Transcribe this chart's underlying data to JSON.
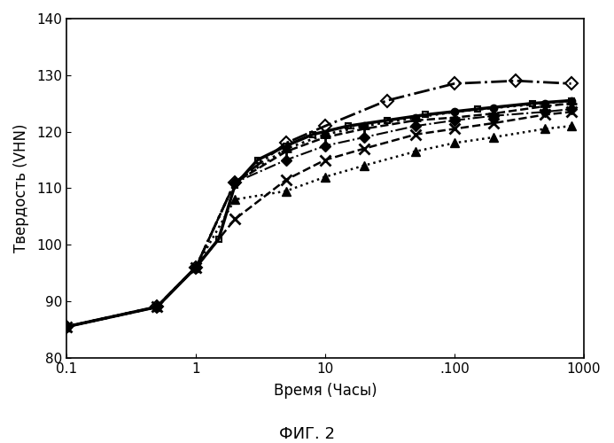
{
  "title": "ФИГ. 2",
  "xlabel": "Время (Часы)",
  "ylabel": "Твердость (VHN)",
  "xlim": [
    0.1,
    1000
  ],
  "ylim": [
    80,
    140
  ],
  "yticks": [
    80,
    90,
    100,
    110,
    120,
    130,
    140
  ],
  "background_color": "#ffffff",
  "series": [
    {
      "name": "solid_main",
      "x": [
        0.1,
        0.5,
        1.0,
        1.5,
        2.0,
        3.0,
        5.0,
        8.0,
        15.0,
        30.0,
        60.0,
        150.0,
        400.0,
        800.0
      ],
      "y": [
        85.5,
        89.0,
        96.0,
        101.0,
        110.5,
        115.0,
        117.5,
        119.5,
        121.0,
        122.0,
        123.0,
        124.0,
        125.0,
        125.5
      ],
      "linestyle": "solid",
      "linewidth": 2.5,
      "marker": "s",
      "markersize": 5,
      "color": "#000000",
      "fillstyle": "none",
      "markeredgewidth": 1.5
    },
    {
      "name": "dashdot_open_diamond",
      "x": [
        0.1,
        0.5,
        1.0,
        2.0,
        5.0,
        10.0,
        30.0,
        100.0,
        300.0,
        800.0
      ],
      "y": [
        85.5,
        89.0,
        96.0,
        111.0,
        118.0,
        121.0,
        125.5,
        128.5,
        129.0,
        128.5
      ],
      "linestyle": "dashdot",
      "linewidth": 2.0,
      "marker": "D",
      "markersize": 7,
      "color": "#000000",
      "fillstyle": "none",
      "markeredgewidth": 1.5
    },
    {
      "name": "dotted_filled_circle",
      "x": [
        0.1,
        0.5,
        1.0,
        2.0,
        5.0,
        10.0,
        20.0,
        50.0,
        100.0,
        200.0,
        500.0,
        800.0
      ],
      "y": [
        85.5,
        89.0,
        96.0,
        111.0,
        117.0,
        119.5,
        121.0,
        122.5,
        123.5,
        124.2,
        125.0,
        125.5
      ],
      "linestyle": "dotted",
      "linewidth": 2.0,
      "marker": "o",
      "markersize": 6,
      "color": "#000000",
      "fillstyle": "full",
      "markeredgewidth": 1.0
    },
    {
      "name": "dashed_plus",
      "x": [
        0.1,
        0.5,
        1.0,
        2.0,
        5.0,
        10.0,
        20.0,
        50.0,
        100.0,
        200.0,
        500.0,
        800.0
      ],
      "y": [
        85.5,
        89.0,
        96.0,
        111.0,
        116.5,
        119.0,
        120.5,
        122.0,
        122.5,
        123.2,
        124.5,
        125.0
      ],
      "linestyle": "dashed",
      "linewidth": 1.8,
      "marker": "+",
      "markersize": 9,
      "color": "#000000",
      "fillstyle": "full",
      "markeredgewidth": 2.0
    },
    {
      "name": "dashdotdot_filled_diamond",
      "x": [
        0.1,
        0.5,
        1.0,
        2.0,
        5.0,
        10.0,
        20.0,
        50.0,
        100.0,
        200.0,
        500.0,
        800.0
      ],
      "y": [
        85.5,
        89.0,
        96.0,
        111.0,
        115.0,
        117.5,
        119.0,
        121.0,
        122.0,
        122.8,
        123.5,
        124.0
      ],
      "linestyle": "dashdot",
      "linewidth": 1.5,
      "marker": "D",
      "markersize": 6,
      "color": "#000000",
      "fillstyle": "full",
      "markeredgewidth": 1.0
    },
    {
      "name": "longdash_x",
      "x": [
        0.1,
        0.5,
        1.0,
        2.0,
        5.0,
        10.0,
        20.0,
        50.0,
        100.0,
        200.0,
        500.0,
        800.0
      ],
      "y": [
        85.5,
        89.0,
        96.0,
        104.5,
        111.5,
        115.0,
        117.0,
        119.5,
        120.5,
        121.5,
        123.0,
        123.5
      ],
      "linestyle": "dashed",
      "linewidth": 1.8,
      "marker": "x",
      "markersize": 9,
      "color": "#000000",
      "fillstyle": "full",
      "markeredgewidth": 2.0
    },
    {
      "name": "dotted_filled_triangle",
      "x": [
        0.1,
        0.5,
        1.0,
        2.0,
        5.0,
        10.0,
        20.0,
        50.0,
        100.0,
        200.0,
        500.0,
        800.0
      ],
      "y": [
        85.5,
        89.0,
        96.0,
        108.0,
        109.5,
        112.0,
        114.0,
        116.5,
        118.0,
        119.0,
        120.5,
        121.0
      ],
      "linestyle": "dotted",
      "linewidth": 1.8,
      "marker": "^",
      "markersize": 7,
      "color": "#000000",
      "fillstyle": "full",
      "markeredgewidth": 1.0
    }
  ]
}
